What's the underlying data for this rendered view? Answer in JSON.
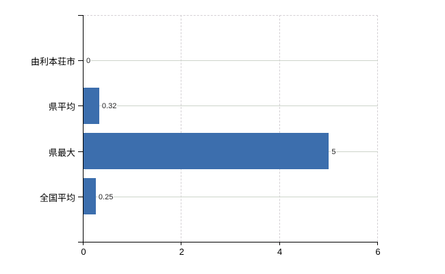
{
  "chart_data": {
    "type": "bar",
    "orientation": "horizontal",
    "title": "",
    "xlabel": "",
    "ylabel": "",
    "categories": [
      "由利本荘市",
      "県平均",
      "県最大",
      "全国平均"
    ],
    "values": [
      0,
      0.32,
      5,
      0.25
    ],
    "value_labels": [
      "0",
      "0.32",
      "5",
      "0.25"
    ],
    "xlim": [
      0,
      6
    ],
    "x_ticks": [
      0,
      2,
      4,
      6
    ],
    "x_tick_labels": [
      "0",
      "2",
      "4",
      "6"
    ],
    "grid": true,
    "legend_position": "none",
    "colors": {
      "bar": "#3c6ead",
      "axis": "#000000",
      "grid_horizontal": "#cdd4ca",
      "grid_vertical": "#d4d0d4",
      "category_text": "#000000",
      "value_text": "#222222",
      "background": "#ffffff"
    }
  }
}
